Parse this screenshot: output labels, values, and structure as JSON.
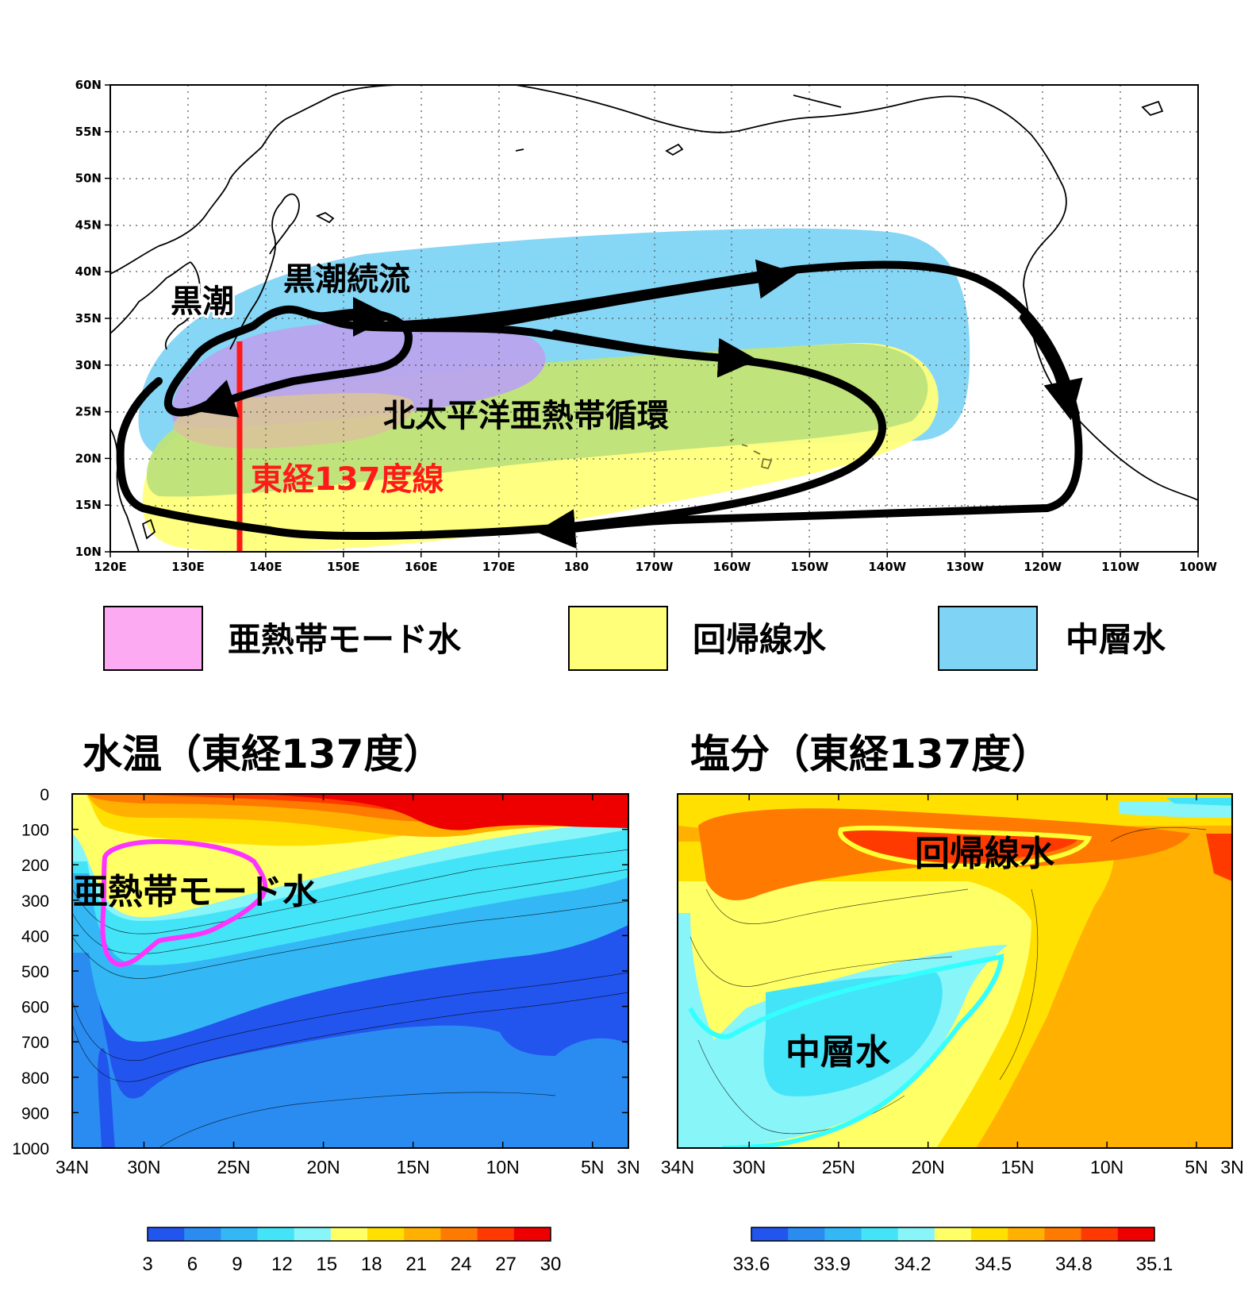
{
  "colors": {
    "stmw": "#fcaaf2",
    "trop": "#ffff7a",
    "iw": "#7fd4f5",
    "section_line": "#ff1a1a",
    "mode_water_contour": "#ff33ff",
    "trop_contour": "#ffff33",
    "iw_contour": "#33ffff"
  },
  "map": {
    "lat_labels": [
      "60N",
      "55N",
      "50N",
      "45N",
      "40N",
      "35N",
      "30N",
      "25N",
      "20N",
      "15N",
      "10N"
    ],
    "lon_labels": [
      "120E",
      "130E",
      "140E",
      "150E",
      "160E",
      "170E",
      "180",
      "170W",
      "160W",
      "150W",
      "140W",
      "130W",
      "120W",
      "110W",
      "100W"
    ],
    "labels": {
      "kuroshio": "黒潮",
      "kuroshio_ext": "黒潮続流",
      "gyre": "北太平洋亜熱帯循環",
      "section": "東経137度線"
    }
  },
  "legend": [
    {
      "label": "亜熱帯モード水",
      "color_key": "stmw"
    },
    {
      "label": "回帰線水",
      "color_key": "trop"
    },
    {
      "label": "中層水",
      "color_key": "iw"
    }
  ],
  "chart_data": [
    {
      "type": "heatmap",
      "title": "水温（東経137度）",
      "x_tick_labels": [
        "34N",
        "30N",
        "25N",
        "20N",
        "15N",
        "10N",
        "5N",
        "3N"
      ],
      "x_tick_values": [
        34,
        30,
        25,
        20,
        15,
        10,
        5,
        3
      ],
      "y_tick_labels": [
        "0",
        "100",
        "200",
        "300",
        "400",
        "500",
        "600",
        "700",
        "800",
        "900",
        "1000"
      ],
      "ylim": [
        0,
        1000
      ],
      "colorbar_labels": [
        "3",
        "6",
        "9",
        "12",
        "15",
        "18",
        "21",
        "24",
        "27",
        "30"
      ],
      "colorbar_colors": [
        "#2255ee",
        "#2a8cf0",
        "#33b8f5",
        "#44e4f8",
        "#88f5f8",
        "#ffff66",
        "#ffe000",
        "#ffb000",
        "#ff7a00",
        "#ff3a00",
        "#ee0000"
      ],
      "annotation": "亜熱帯モード水"
    },
    {
      "type": "heatmap",
      "title": "塩分（東経137度）",
      "x_tick_labels": [
        "34N",
        "30N",
        "25N",
        "20N",
        "15N",
        "10N",
        "5N",
        "3N"
      ],
      "x_tick_values": [
        34,
        30,
        25,
        20,
        15,
        10,
        5,
        3
      ],
      "colorbar_labels": [
        "33.6",
        "33.9",
        "34.2",
        "34.5",
        "34.8",
        "35.1"
      ],
      "colorbar_colors": [
        "#2255ee",
        "#2a8cf0",
        "#33b8f5",
        "#44e4f8",
        "#88f5f8",
        "#ffff66",
        "#ffe000",
        "#ffb000",
        "#ff7a00",
        "#ff3a00",
        "#ee0000"
      ],
      "annotations": [
        "回帰線水",
        "中層水"
      ]
    }
  ]
}
